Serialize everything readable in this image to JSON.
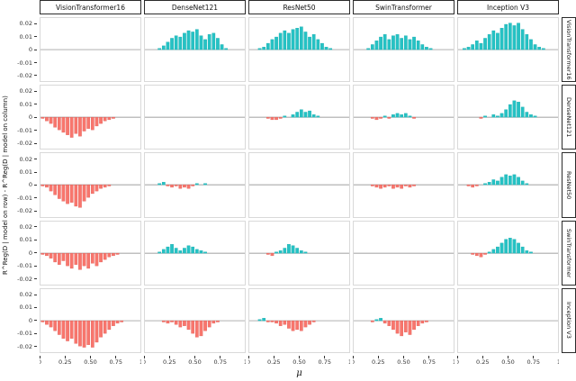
{
  "chart_data": {
    "type": "bar",
    "title": "",
    "xlabel": "μ",
    "ylabel": "R^Reg(D | model on row) - R^Reg(D | model on column)",
    "x_ticks": [
      "0",
      "0.25",
      "0.50",
      "0.75",
      "1"
    ],
    "x_tick_values": [
      0,
      0.25,
      0.5,
      0.75,
      1
    ],
    "y_ticks": [
      "0.02",
      "0.01",
      "0",
      "-0.01",
      "-0.02"
    ],
    "y_tick_values": [
      0.02,
      0.01,
      0,
      -0.01,
      -0.02
    ],
    "xlim": [
      0,
      1
    ],
    "ylim": [
      -0.025,
      0.025
    ],
    "n_bins": 24,
    "grid": "off",
    "legend": "none",
    "colors": {
      "positive": "#26c2c4",
      "positive_stroke": "#0fa8ab",
      "negative": "#f8766d",
      "negative_stroke": "#e05c55",
      "zero_line": "#808080",
      "panel_border": "#d9d9d9",
      "strip_border": "#2b2b2b"
    },
    "facets": {
      "columns": [
        "VisionTransformer16",
        "DenseNet121",
        "ResNet50",
        "SwinTransformer",
        "Inception V3"
      ],
      "rows": [
        "VisionTransformer16",
        "DenseNet121",
        "ResNet50",
        "SwinTransformer",
        "Inception V3"
      ]
    },
    "panels": [
      {
        "row": "VisionTransformer16",
        "col": "VisionTransformer16",
        "values": [
          0,
          0,
          0,
          0,
          0,
          0,
          0,
          0,
          0,
          0,
          0,
          0,
          0,
          0,
          0,
          0,
          0,
          0,
          0,
          0,
          0,
          0,
          0,
          0
        ]
      },
      {
        "row": "VisionTransformer16",
        "col": "DenseNet121",
        "values": [
          0,
          0,
          0,
          0.001,
          0.003,
          0.006,
          0.009,
          0.011,
          0.01,
          0.013,
          0.015,
          0.014,
          0.016,
          0.011,
          0.008,
          0.012,
          0.013,
          0.009,
          0.004,
          0.001,
          0,
          0,
          0,
          0
        ]
      },
      {
        "row": "VisionTransformer16",
        "col": "ResNet50",
        "values": [
          0,
          0,
          0.001,
          0.002,
          0.005,
          0.008,
          0.01,
          0.013,
          0.015,
          0.013,
          0.016,
          0.017,
          0.018,
          0.014,
          0.01,
          0.012,
          0.008,
          0.005,
          0.002,
          0.001,
          0,
          0,
          0,
          0
        ]
      },
      {
        "row": "VisionTransformer16",
        "col": "SwinTransformer",
        "values": [
          0,
          0,
          0,
          0.001,
          0.004,
          0.007,
          0.01,
          0.012,
          0.008,
          0.011,
          0.012,
          0.009,
          0.011,
          0.008,
          0.01,
          0.007,
          0.004,
          0.002,
          0.001,
          0,
          0,
          0,
          0,
          0
        ]
      },
      {
        "row": "VisionTransformer16",
        "col": "Inception V3",
        "values": [
          0,
          0.001,
          0.002,
          0.004,
          0.007,
          0.005,
          0.009,
          0.012,
          0.015,
          0.013,
          0.017,
          0.02,
          0.021,
          0.019,
          0.021,
          0.016,
          0.012,
          0.008,
          0.004,
          0.002,
          0.001,
          0,
          0,
          0
        ]
      },
      {
        "row": "DenseNet121",
        "col": "VisionTransformer16",
        "values": [
          -0.001,
          -0.003,
          -0.005,
          -0.008,
          -0.01,
          -0.012,
          -0.014,
          -0.016,
          -0.013,
          -0.015,
          -0.011,
          -0.009,
          -0.01,
          -0.007,
          -0.005,
          -0.003,
          -0.002,
          -0.001,
          0,
          0,
          0,
          0,
          0,
          0
        ]
      },
      {
        "row": "DenseNet121",
        "col": "DenseNet121",
        "values": [
          0,
          0,
          0,
          0,
          0,
          0,
          0,
          0,
          0,
          0,
          0,
          0,
          0,
          0,
          0,
          0,
          0,
          0,
          0,
          0,
          0,
          0,
          0,
          0
        ]
      },
      {
        "row": "DenseNet121",
        "col": "ResNet50",
        "values": [
          0,
          0,
          0,
          0,
          -0.001,
          -0.002,
          -0.002,
          -0.001,
          0.001,
          0,
          0.002,
          0.004,
          0.006,
          0.004,
          0.005,
          0.002,
          0.001,
          0,
          0,
          0,
          0,
          0,
          0,
          0
        ]
      },
      {
        "row": "DenseNet121",
        "col": "SwinTransformer",
        "values": [
          0,
          0,
          0,
          0,
          -0.001,
          -0.002,
          -0.001,
          0.001,
          -0.001,
          0.002,
          0.003,
          0.002,
          0.003,
          0.001,
          -0.001,
          0,
          0,
          0,
          0,
          0,
          0,
          0,
          0,
          0
        ]
      },
      {
        "row": "DenseNet121",
        "col": "Inception V3",
        "values": [
          0,
          0,
          0,
          0,
          0,
          -0.001,
          0.001,
          0,
          0.002,
          0.001,
          0.003,
          0.006,
          0.01,
          0.013,
          0.012,
          0.008,
          0.004,
          0.002,
          0.001,
          0,
          0,
          0,
          0,
          0
        ]
      },
      {
        "row": "ResNet50",
        "col": "VisionTransformer16",
        "values": [
          -0.001,
          -0.002,
          -0.005,
          -0.008,
          -0.011,
          -0.013,
          -0.015,
          -0.014,
          -0.017,
          -0.018,
          -0.013,
          -0.01,
          -0.007,
          -0.005,
          -0.003,
          -0.002,
          -0.001,
          0,
          0,
          0,
          0,
          0,
          0,
          0
        ]
      },
      {
        "row": "ResNet50",
        "col": "DenseNet121",
        "values": [
          0,
          0,
          0,
          0.001,
          0.002,
          -0.001,
          -0.002,
          -0.001,
          -0.003,
          -0.002,
          -0.003,
          -0.001,
          0.001,
          0,
          0.001,
          0,
          0,
          0,
          0,
          0,
          0,
          0,
          0,
          0
        ]
      },
      {
        "row": "ResNet50",
        "col": "ResNet50",
        "values": [
          0,
          0,
          0,
          0,
          0,
          0,
          0,
          0,
          0,
          0,
          0,
          0,
          0,
          0,
          0,
          0,
          0,
          0,
          0,
          0,
          0,
          0,
          0,
          0
        ]
      },
      {
        "row": "ResNet50",
        "col": "SwinTransformer",
        "values": [
          0,
          0,
          0,
          0,
          -0.001,
          -0.002,
          -0.003,
          -0.002,
          -0.001,
          -0.003,
          -0.002,
          -0.003,
          -0.001,
          -0.002,
          -0.001,
          0,
          0,
          0,
          0,
          0,
          0,
          0,
          0,
          0
        ]
      },
      {
        "row": "ResNet50",
        "col": "Inception V3",
        "values": [
          0,
          0,
          -0.001,
          -0.002,
          -0.001,
          0,
          0.001,
          0.002,
          0.004,
          0.003,
          0.006,
          0.008,
          0.007,
          0.008,
          0.006,
          0.003,
          0.001,
          0,
          0,
          0,
          0,
          0,
          0,
          0
        ]
      },
      {
        "row": "SwinTransformer",
        "col": "VisionTransformer16",
        "values": [
          -0.001,
          -0.002,
          -0.004,
          -0.007,
          -0.009,
          -0.006,
          -0.01,
          -0.012,
          -0.009,
          -0.013,
          -0.01,
          -0.012,
          -0.008,
          -0.01,
          -0.007,
          -0.005,
          -0.003,
          -0.002,
          -0.001,
          0,
          0,
          0,
          0,
          0
        ]
      },
      {
        "row": "SwinTransformer",
        "col": "DenseNet121",
        "values": [
          0,
          0,
          0,
          0.001,
          0.003,
          0.005,
          0.007,
          0.004,
          0.002,
          0.004,
          0.006,
          0.005,
          0.003,
          0.002,
          0.001,
          0,
          0,
          0,
          0,
          0,
          0,
          0,
          0,
          0
        ]
      },
      {
        "row": "SwinTransformer",
        "col": "ResNet50",
        "values": [
          0,
          0,
          0,
          0,
          -0.001,
          -0.002,
          0.001,
          0.002,
          0.004,
          0.007,
          0.006,
          0.004,
          0.002,
          0.001,
          0,
          0,
          0,
          0,
          0,
          0,
          0,
          0,
          0,
          0
        ]
      },
      {
        "row": "SwinTransformer",
        "col": "SwinTransformer",
        "values": [
          0,
          0,
          0,
          0,
          0,
          0,
          0,
          0,
          0,
          0,
          0,
          0,
          0,
          0,
          0,
          0,
          0,
          0,
          0,
          0,
          0,
          0,
          0,
          0
        ]
      },
      {
        "row": "SwinTransformer",
        "col": "Inception V3",
        "values": [
          0,
          0,
          0,
          -0.001,
          -0.002,
          -0.003,
          -0.001,
          0.001,
          0.003,
          0.005,
          0.008,
          0.011,
          0.012,
          0.011,
          0.008,
          0.005,
          0.002,
          0.001,
          0,
          0,
          0,
          0,
          0,
          0
        ]
      },
      {
        "row": "Inception V3",
        "col": "VisionTransformer16",
        "values": [
          -0.001,
          -0.003,
          -0.005,
          -0.008,
          -0.011,
          -0.014,
          -0.016,
          -0.014,
          -0.018,
          -0.02,
          -0.021,
          -0.019,
          -0.021,
          -0.017,
          -0.013,
          -0.01,
          -0.007,
          -0.004,
          -0.002,
          -0.001,
          0,
          0,
          0,
          0
        ]
      },
      {
        "row": "Inception V3",
        "col": "DenseNet121",
        "values": [
          0,
          0,
          0,
          0,
          -0.001,
          -0.002,
          -0.001,
          -0.003,
          -0.005,
          -0.004,
          -0.007,
          -0.01,
          -0.013,
          -0.012,
          -0.008,
          -0.005,
          -0.002,
          -0.001,
          0,
          0,
          0,
          0,
          0,
          0
        ]
      },
      {
        "row": "Inception V3",
        "col": "ResNet50",
        "values": [
          0,
          0,
          0.001,
          0.002,
          -0.001,
          -0.001,
          -0.002,
          -0.004,
          -0.003,
          -0.006,
          -0.008,
          -0.007,
          -0.008,
          -0.005,
          -0.003,
          -0.001,
          0,
          0,
          0,
          0,
          0,
          0,
          0,
          0
        ]
      },
      {
        "row": "Inception V3",
        "col": "SwinTransformer",
        "values": [
          0,
          0,
          0,
          0,
          -0.001,
          0.001,
          0.002,
          -0.002,
          -0.004,
          -0.007,
          -0.01,
          -0.012,
          -0.009,
          -0.011,
          -0.007,
          -0.004,
          -0.002,
          -0.001,
          0,
          0,
          0,
          0,
          0,
          0
        ]
      },
      {
        "row": "Inception V3",
        "col": "Inception V3",
        "values": [
          0,
          0,
          0,
          0,
          0,
          0,
          0,
          0,
          0,
          0,
          0,
          0,
          0,
          0,
          0,
          0,
          0,
          0,
          0,
          0,
          0,
          0,
          0,
          0
        ]
      }
    ]
  }
}
